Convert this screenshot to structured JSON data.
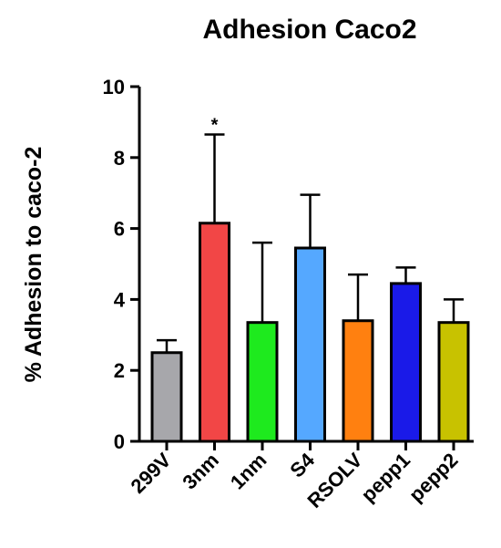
{
  "chart_data": {
    "type": "bar",
    "title": "Adhesion Caco2",
    "xlabel": "",
    "ylabel": "% Adhesion to caco-2",
    "ylim": [
      0,
      10
    ],
    "yticks": [
      0,
      2,
      4,
      6,
      8,
      10
    ],
    "categories": [
      "299V",
      "3nm",
      "1nm",
      "S4",
      "RSOLV",
      "pepp1",
      "pepp2"
    ],
    "values": [
      2.5,
      6.15,
      3.35,
      5.45,
      3.4,
      4.45,
      3.35
    ],
    "error_upper": [
      0.35,
      2.5,
      2.25,
      1.5,
      1.3,
      0.45,
      0.65
    ],
    "colors": [
      "#a7a7ab",
      "#f24646",
      "#1eea1e",
      "#55a8ff",
      "#ff8010",
      "#1a1ae8",
      "#c8c200"
    ],
    "annotations": [
      {
        "category": "3nm",
        "text": "*"
      }
    ],
    "grid": false,
    "legend": "none"
  }
}
